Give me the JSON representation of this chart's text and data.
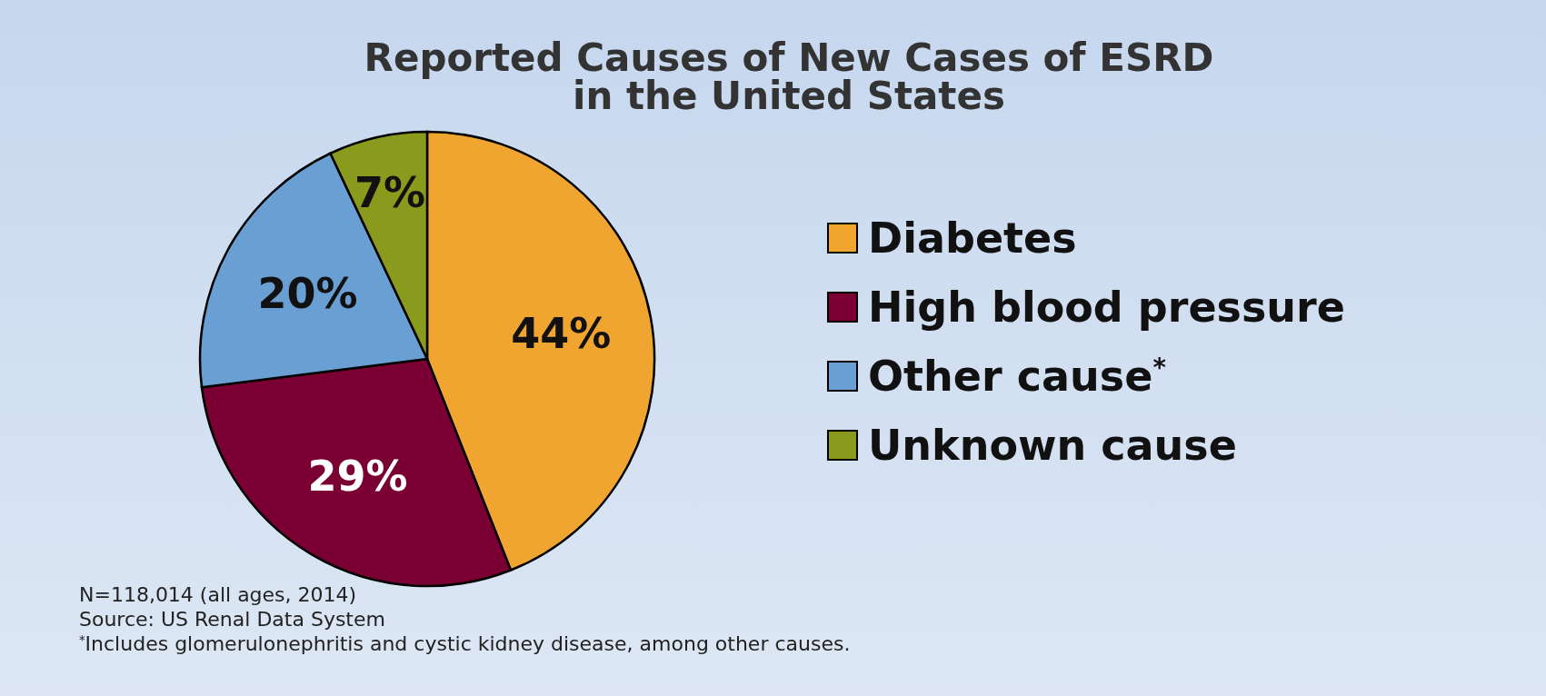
{
  "chart_data": {
    "type": "pie",
    "title": "Reported Causes of New Cases of ESRD in the United States",
    "categories": [
      "Diabetes",
      "High blood pressure",
      "Other cause$^{*}$",
      "Unknown cause"
    ],
    "values": [
      44,
      29,
      20,
      7
    ],
    "colors": [
      "#f0a530",
      "#7a0033",
      "#6a9fd4",
      "#8a9a1c"
    ],
    "value_labels": [
      "44%",
      "29%",
      "20%",
      "7%"
    ],
    "legend": "right",
    "annotations": [
      "N=118,014 (all ages, 2014)",
      "Source: US Renal Data System",
      "$^{*}$Includes glomerulonephritis and cystic kidney disease, among other causes."
    ]
  }
}
